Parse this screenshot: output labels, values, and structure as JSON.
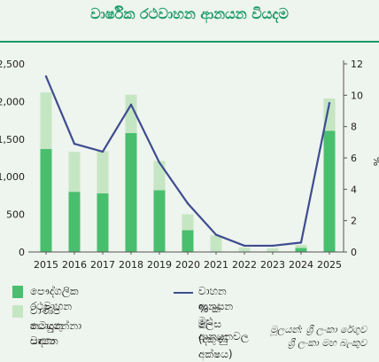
{
  "title": "වාර්ෂික රථවාහන ආනයන වියදම",
  "chart_data": {
    "type": "bar",
    "stacked": true,
    "categories": [
      "2015",
      "2016",
      "2017",
      "2018",
      "2019",
      "2020",
      "2021",
      "2022",
      "2023",
      "2024",
      "2025"
    ],
    "series": [
      {
        "name": "පෞද්ගලික රථවාහන",
        "type": "bar",
        "axis": "left",
        "color": "#49bf6e",
        "values": [
          1370,
          800,
          780,
          1580,
          820,
          290,
          0,
          0,
          0,
          55,
          1610
        ]
      },
      {
        "name": "වාණිජ කටයුතු සඳහා යොදාගන්නා වාහන",
        "type": "bar",
        "axis": "left",
        "color": "#c5e6c3",
        "values": [
          750,
          530,
          560,
          510,
          390,
          210,
          220,
          60,
          50,
          40,
          430
        ]
      },
      {
        "name": "වාහන ආනයන මුළු ආනයනවල % ක් ලෙස (දකුණු අක්ෂය)",
        "type": "line",
        "axis": "right",
        "color": "#3e4c8f",
        "values": [
          11.2,
          6.9,
          6.4,
          9.4,
          5.7,
          3.1,
          1.1,
          0.4,
          0.4,
          0.6,
          9.5
        ]
      }
    ],
    "ylim_left": [
      0,
      2500
    ],
    "yticks_left": [
      0,
      500,
      1000,
      1500,
      2000,
      2500
    ],
    "ytick_labels_left": [
      "0",
      "500",
      "1,000",
      "1,500",
      "2,000",
      "2,500"
    ],
    "ylim_right": [
      0,
      12
    ],
    "yticks_right": [
      0,
      2,
      4,
      6,
      8,
      10,
      12
    ],
    "ylabel_right": "%",
    "grid": false,
    "legend_placement": "bottom"
  },
  "legend": {
    "private": "පෞද්ගලික රථවාහන",
    "commercial_line1": "වාණිජ කටයුතු සඳහා",
    "commercial_line2": "යොදාගන්නා වාහන",
    "ratio_line1": "වාහන ආනයන මුළු ආනයනවල",
    "ratio_line2": "% ක් ලෙස (දකුණු අක්ෂය)"
  },
  "source": {
    "line1": "මූලයන්: ශ්‍රී ලංකා රේගුව",
    "line2": "ශ්‍රී ලංකා මහ බැංකුව"
  }
}
